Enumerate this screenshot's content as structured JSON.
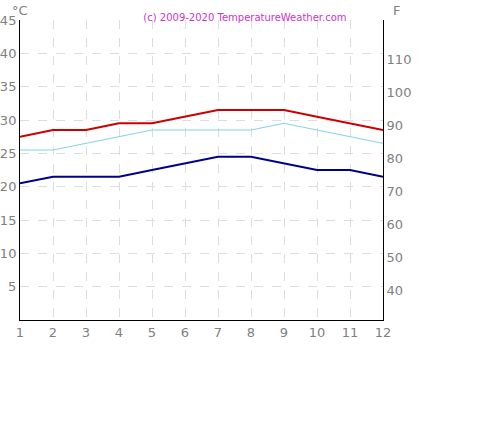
{
  "chart_data": {
    "type": "line",
    "title": "(c) 2009-2020 TemperatureWeather.com",
    "y_label": "°C",
    "y2_label": "F",
    "x": [
      1,
      2,
      3,
      4,
      5,
      6,
      7,
      8,
      9,
      10,
      11,
      12
    ],
    "xlim": [
      1,
      12
    ],
    "xticks": [
      1,
      2,
      3,
      4,
      5,
      6,
      7,
      8,
      9,
      10,
      11,
      12
    ],
    "ylim": [
      0,
      45
    ],
    "yticks": [
      5,
      10,
      15,
      20,
      25,
      30,
      35,
      40,
      45
    ],
    "y2lim": [
      31.1,
      121.8
    ],
    "y2ticks": [
      40,
      50,
      60,
      70,
      80,
      90,
      100,
      110
    ],
    "grid": true,
    "series": [
      {
        "color": "#cc0000",
        "values": [
          27.5,
          28.5,
          28.5,
          29.5,
          29.5,
          30.5,
          31.5,
          31.5,
          31.5,
          30.5,
          29.5,
          28.5
        ]
      },
      {
        "color": "#7fd3ea",
        "values": [
          25.5,
          25.5,
          26.5,
          27.5,
          28.5,
          28.5,
          28.5,
          28.5,
          29.5,
          28.5,
          27.5,
          26.5
        ]
      },
      {
        "color": "#00008b",
        "values": [
          20.5,
          21.5,
          21.5,
          21.5,
          22.5,
          23.5,
          24.5,
          24.5,
          23.5,
          22.5,
          22.5,
          21.5
        ]
      }
    ]
  }
}
